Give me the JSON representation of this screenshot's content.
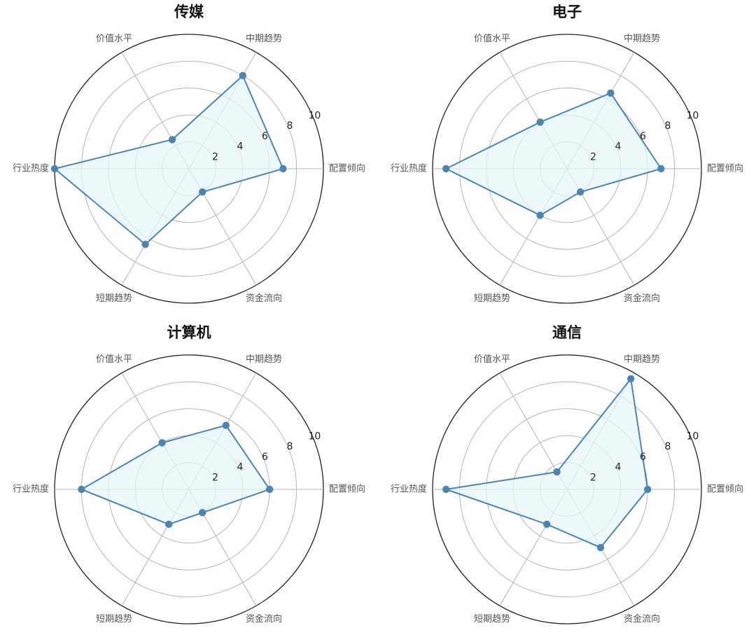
{
  "chart_data": [
    {
      "type": "radar",
      "title": "传媒",
      "axes": [
        "配置倾向",
        "中期趋势",
        "价值水平",
        "行业热度",
        "短期趋势",
        "资金流向"
      ],
      "values": [
        7,
        8,
        2.5,
        10,
        6.5,
        2
      ],
      "rlim": [
        0,
        10
      ],
      "rticks": [
        2,
        4,
        6,
        8,
        10
      ],
      "grid": true,
      "colors": {
        "line": "#4c84b0",
        "fill": "#e6f5fa",
        "marker": "#4c84b0"
      }
    },
    {
      "type": "radar",
      "title": "电子",
      "axes": [
        "配置倾向",
        "中期趋势",
        "价值水平",
        "行业热度",
        "短期趋势",
        "资金流向"
      ],
      "values": [
        7,
        6.5,
        4,
        9,
        4,
        2
      ],
      "rlim": [
        0,
        10
      ],
      "rticks": [
        2,
        4,
        6,
        8,
        10
      ],
      "grid": true,
      "colors": {
        "line": "#4c84b0",
        "fill": "#e6f5fa",
        "marker": "#4c84b0"
      }
    },
    {
      "type": "radar",
      "title": "计算机",
      "axes": [
        "配置倾向",
        "中期趋势",
        "价值水平",
        "行业热度",
        "短期趋势",
        "资金流向"
      ],
      "values": [
        6,
        5.5,
        4,
        8,
        3,
        2
      ],
      "rlim": [
        0,
        10
      ],
      "rticks": [
        2,
        4,
        6,
        8,
        10
      ],
      "grid": true,
      "colors": {
        "line": "#4c84b0",
        "fill": "#e6f5fa",
        "marker": "#4c84b0"
      }
    },
    {
      "type": "radar",
      "title": "通信",
      "axes": [
        "配置倾向",
        "中期趋势",
        "价值水平",
        "行业热度",
        "短期趋势",
        "资金流向"
      ],
      "values": [
        6,
        9.5,
        1.5,
        9,
        3,
        5
      ],
      "rlim": [
        0,
        10
      ],
      "rticks": [
        2,
        4,
        6,
        8,
        10
      ],
      "grid": true,
      "colors": {
        "line": "#4c84b0",
        "fill": "#e6f5fa",
        "marker": "#4c84b0"
      }
    }
  ]
}
